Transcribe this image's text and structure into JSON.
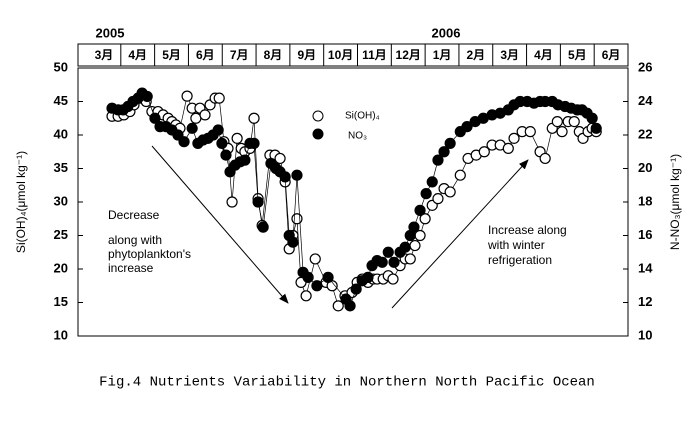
{
  "chart_data": {
    "type": "scatter",
    "title": "Fig.4  Nutrients Variability in Northern North Pacific Ocean",
    "ylabel": "Si(OH)₄(μmol kg⁻¹)",
    "y2label": "N-NO₃(μmol kg⁻¹)",
    "years": [
      "2005",
      "2006"
    ],
    "months": [
      "3月",
      "4月",
      "5月",
      "6月",
      "7月",
      "8月",
      "9月",
      "10月",
      "11月",
      "12月",
      "1月",
      "2月",
      "3月",
      "4月",
      "5月",
      "6月"
    ],
    "xlim": [
      0,
      16
    ],
    "ylim": [
      10,
      50
    ],
    "yticks": [
      10,
      15,
      20,
      25,
      30,
      35,
      40,
      45,
      50
    ],
    "y2lim": [
      10,
      26
    ],
    "y2ticks": [
      10,
      12,
      14,
      16,
      18,
      20,
      22,
      24,
      26
    ],
    "annotations": {
      "decrease": "Decrease",
      "decrease_detail": [
        "along with",
        "phytoplankton's",
        "increase"
      ],
      "increase": [
        "Increase along",
        "with winter",
        "refrigeration"
      ]
    },
    "series": [
      {
        "name": "Si(OH)₄",
        "color": "#ffffff",
        "axis": "y",
        "x": [
          0.74,
          0.92,
          1.09,
          1.27,
          1.39,
          1.57,
          1.75,
          1.92,
          2.1,
          2.25,
          2.4,
          2.51,
          2.63,
          2.75,
          2.96,
          3.11,
          3.22,
          3.34,
          3.49,
          3.64,
          3.79,
          3.91,
          4.05,
          4.17,
          4.29,
          4.44,
          4.56,
          4.67,
          4.82,
          4.94,
          5.06,
          5.18,
          5.41,
          5.56,
          5.71,
          5.86,
          5.98,
          6.09,
          6.21,
          6.33,
          6.48,
          6.75,
          7.07,
          7.25,
          7.43,
          7.63,
          7.84,
          7.99,
          8.14,
          8.31,
          8.46,
          8.58,
          8.76,
          8.91,
          9.05,
          9.26,
          9.41,
          9.56,
          9.7,
          9.85,
          10.0,
          10.21,
          10.38,
          10.56,
          10.74,
          11.04,
          11.27,
          11.51,
          11.75,
          11.98,
          12.22,
          12.46,
          12.63,
          12.87,
          13.11,
          13.4,
          13.55,
          13.76,
          13.91,
          14.05,
          14.23,
          14.41,
          14.56,
          14.67,
          14.82,
          14.94,
          15.06
        ],
        "values": [
          42.8,
          42.8,
          43,
          43.5,
          44.5,
          45.5,
          45,
          43.5,
          43.5,
          43,
          42.5,
          42,
          41.5,
          41,
          45.8,
          44,
          42.5,
          44,
          43,
          44.5,
          45.5,
          45.5,
          39,
          38,
          30,
          39.5,
          38,
          37.5,
          38,
          42.5,
          30.5,
          26.5,
          37,
          37,
          36.5,
          33,
          23,
          25,
          27.5,
          18,
          16,
          21.5,
          18,
          17.5,
          14.5,
          16,
          16.5,
          18,
          18.5,
          18,
          18.5,
          18.5,
          18.5,
          19,
          18.5,
          20.5,
          21.5,
          21.5,
          23.5,
          25,
          27.5,
          29.5,
          30.5,
          32,
          31.5,
          34,
          36.5,
          37,
          37.5,
          38.5,
          38.5,
          38,
          39.5,
          40.5,
          40.5,
          37.5,
          36.5,
          41,
          42,
          40.5,
          42,
          42,
          40.5,
          39.5,
          40.5,
          41,
          40.5
        ]
      },
      {
        "name": "NO₃",
        "color": "#000000",
        "axis": "y2",
        "x": [
          0.74,
          0.92,
          1.07,
          1.21,
          1.36,
          1.51,
          1.63,
          1.78,
          2.01,
          2.16,
          2.34,
          2.51,
          2.69,
          2.87,
          3.11,
          3.28,
          3.43,
          3.58,
          3.73,
          3.88,
          3.99,
          4.11,
          4.23,
          4.38,
          4.53,
          4.67,
          4.82,
          4.94,
          5.06,
          5.21,
          5.44,
          5.59,
          5.71,
          5.86,
          5.98,
          6.09,
          6.21,
          6.39,
          6.54,
          6.8,
          7.13,
          7.66,
          7.78,
          7.96,
          8.14,
          8.31,
          8.43,
          8.58,
          8.73,
          8.91,
          9.08,
          9.26,
          9.41,
          9.56,
          9.67,
          9.85,
          10.03,
          10.21,
          10.38,
          10.56,
          10.74,
          11.04,
          11.24,
          11.48,
          11.72,
          11.98,
          12.22,
          12.46,
          12.63,
          12.81,
          13.02,
          13.22,
          13.4,
          13.55,
          13.76,
          13.93,
          14.14,
          14.32,
          14.5,
          14.64,
          14.79,
          14.94,
          15.06
        ],
        "values": [
          23.6,
          23.5,
          23.5,
          23.7,
          24,
          24.2,
          24.5,
          24.3,
          23,
          22.5,
          22.5,
          22.3,
          22,
          21.6,
          22.4,
          21.5,
          21.7,
          21.8,
          22,
          22.3,
          21.5,
          20.8,
          19.8,
          20.2,
          20.4,
          20.5,
          21.5,
          21.5,
          18,
          16.5,
          20.3,
          20,
          19.8,
          19.5,
          16,
          15.6,
          19.6,
          13.8,
          13.5,
          13,
          13.5,
          12.2,
          11.8,
          12.8,
          13.3,
          13.5,
          14.2,
          14.5,
          14.4,
          15,
          14.4,
          15,
          15.3,
          16,
          16.5,
          17.5,
          18.5,
          19.2,
          20.5,
          21,
          21.5,
          22.2,
          22.5,
          22.8,
          23,
          23.2,
          23.3,
          23.5,
          23.8,
          24,
          24,
          23.9,
          24,
          24,
          24,
          23.8,
          23.7,
          23.6,
          23.5,
          23.5,
          23.3,
          23,
          22.4
        ]
      }
    ]
  }
}
